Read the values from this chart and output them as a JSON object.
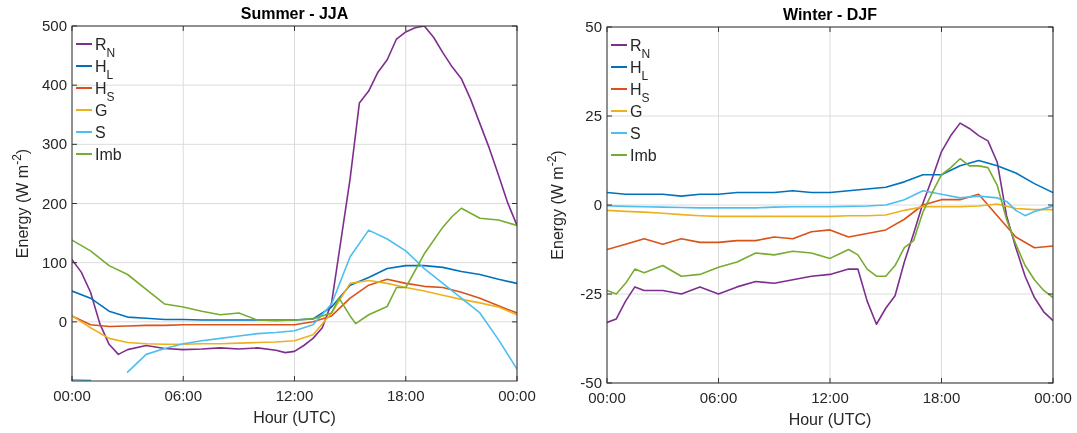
{
  "chart_data": [
    {
      "type": "line",
      "title": "Summer - JJA",
      "xlabel": "Hour (UTC)",
      "ylabel": "Energy (W m$^{-2}$)",
      "x": [
        0,
        1,
        2,
        3,
        4,
        5,
        6,
        7,
        8,
        9,
        10,
        11,
        12,
        13,
        14,
        15,
        16,
        17,
        18,
        19,
        20,
        21,
        22,
        23,
        24
      ],
      "xlim": [
        0,
        24
      ],
      "xticks": [
        {
          "value": 0,
          "label": "00:00"
        },
        {
          "value": 6,
          "label": "06:00"
        },
        {
          "value": 12,
          "label": "12:00"
        },
        {
          "value": 18,
          "label": "18:00"
        },
        {
          "value": 24,
          "label": "00:00"
        }
      ],
      "ylim": [
        -100,
        500
      ],
      "yticks": [
        0,
        100,
        200,
        300,
        400,
        500
      ],
      "grid": true,
      "legend": "top left",
      "series": [
        {
          "name": "R$_{N}$",
          "color": "#7e2f8e",
          "x": [
            0,
            0.5,
            1,
            1.5,
            2,
            2.5,
            3,
            4,
            5,
            6,
            7,
            8,
            9,
            10,
            11,
            11.5,
            12,
            12.5,
            13,
            13.5,
            14,
            14.5,
            15,
            15.5,
            16,
            16.5,
            17,
            17.5,
            18,
            18.5,
            19,
            19.5,
            20,
            20.5,
            21,
            21.5,
            22,
            22.5,
            23,
            23.5,
            24
          ],
          "values": [
            105,
            84,
            50,
            -3,
            -38,
            -55,
            -47,
            -40,
            -45,
            -47,
            -46,
            -44,
            -46,
            -44,
            -48,
            -52,
            -50,
            -40,
            -28,
            -10,
            32,
            137,
            242,
            370,
            390,
            422,
            443,
            478,
            490,
            497,
            500,
            481,
            455,
            431,
            411,
            376,
            335,
            294,
            248,
            201,
            163
          ]
        },
        {
          "name": "H$_{L}$",
          "color": "#0072bd",
          "values": [
            52,
            40,
            18,
            8,
            6,
            4,
            4,
            3,
            3,
            3,
            3,
            3,
            3,
            5,
            25,
            62,
            75,
            90,
            95,
            95,
            92,
            85,
            80,
            72,
            65
          ]
        },
        {
          "name": "H$_{S}$",
          "color": "#d95319",
          "values": [
            10,
            -5,
            -8,
            -7,
            -6,
            -6,
            -5,
            -5,
            -5,
            -5,
            -5,
            -5,
            -5,
            0,
            10,
            40,
            62,
            72,
            65,
            60,
            58,
            50,
            40,
            27,
            15
          ]
        },
        {
          "name": "G",
          "color": "#edb120",
          "values": [
            10,
            -10,
            -28,
            -35,
            -37,
            -38,
            -38,
            -37,
            -37,
            -36,
            -35,
            -34,
            -32,
            -22,
            15,
            65,
            70,
            65,
            58,
            52,
            45,
            38,
            32,
            25,
            12
          ]
        },
        {
          "name": "S",
          "color": "#4dbeee",
          "values": [
            -98,
            -99,
            null,
            -85,
            -55,
            -45,
            -37,
            -32,
            -28,
            -24,
            -20,
            -18,
            -15,
            -5,
            30,
            110,
            155,
            140,
            120,
            90,
            65,
            40,
            15,
            -30,
            -80
          ]
        },
        {
          "name": "Imb",
          "color": "#77ac30",
          "x": [
            0,
            1,
            2,
            3,
            4,
            5,
            6,
            7,
            8,
            9,
            10,
            11,
            12,
            13,
            14,
            14.4,
            15,
            15.3,
            16,
            17,
            17.5,
            18,
            19,
            20,
            20.5,
            21,
            22,
            23,
            24
          ],
          "values": [
            138,
            120,
            95,
            80,
            55,
            30,
            25,
            18,
            12,
            15,
            3,
            2,
            3,
            5,
            15,
            40,
            10,
            -3,
            12,
            26,
            58,
            58,
            115,
            160,
            178,
            192,
            175,
            172,
            163
          ]
        }
      ]
    },
    {
      "type": "line",
      "title": "Winter - DJF",
      "xlabel": "Hour (UTC)",
      "ylabel": "Energy (W m$^{-2}$)",
      "x": [
        0,
        1,
        2,
        3,
        4,
        5,
        6,
        7,
        8,
        9,
        10,
        11,
        12,
        13,
        14,
        15,
        16,
        17,
        18,
        19,
        20,
        21,
        22,
        23,
        24
      ],
      "xlim": [
        0,
        24
      ],
      "xticks": [
        {
          "value": 0,
          "label": "00:00"
        },
        {
          "value": 6,
          "label": "06:00"
        },
        {
          "value": 12,
          "label": "12:00"
        },
        {
          "value": 18,
          "label": "18:00"
        },
        {
          "value": 24,
          "label": "00:00"
        }
      ],
      "ylim": [
        -50,
        50
      ],
      "yticks": [
        -50,
        -25,
        0,
        25,
        50
      ],
      "grid": true,
      "legend": "top left",
      "series": [
        {
          "name": "R$_{N}$",
          "color": "#7e2f8e",
          "x": [
            0,
            0.5,
            1,
            1.5,
            2,
            3,
            4,
            5,
            6,
            7,
            8,
            9,
            10,
            11,
            12,
            13,
            13.5,
            14,
            14.5,
            15,
            15.5,
            16,
            16.5,
            17,
            17.5,
            18,
            18.5,
            19,
            19.5,
            20,
            20.5,
            21,
            21.5,
            22,
            22.5,
            23,
            23.5,
            24
          ],
          "values": [
            -33,
            -32,
            -27,
            -23,
            -24,
            -24,
            -25,
            -23,
            -25,
            -23,
            -21.5,
            -22,
            -21,
            -20,
            -19.5,
            -18,
            -18,
            -27,
            -33.5,
            -29,
            -25.5,
            -16,
            -8,
            0.5,
            7.5,
            15,
            19.5,
            23,
            21.5,
            19.5,
            18,
            12,
            -3,
            -12,
            -20,
            -26,
            -30,
            -32.5
          ]
        },
        {
          "name": "H$_{L}$",
          "color": "#0072bd",
          "values": [
            3.5,
            3,
            3,
            3,
            2.5,
            3,
            3,
            3.5,
            3.5,
            3.5,
            4,
            3.5,
            3.5,
            4,
            4.5,
            5,
            6.5,
            8.5,
            8.5,
            11,
            12.5,
            11,
            9,
            6,
            3.5
          ]
        },
        {
          "name": "H$_{S}$",
          "color": "#d95319",
          "values": [
            -12.5,
            -11,
            -9.5,
            -11,
            -9.5,
            -10.5,
            -10.5,
            -10,
            -10,
            -9,
            -9.5,
            -7.5,
            -7,
            -9,
            -8,
            -7,
            -4,
            0,
            1.5,
            1.5,
            3,
            -3,
            -9,
            -12,
            -11.5
          ]
        },
        {
          "name": "G",
          "color": "#edb120",
          "values": [
            -1.5,
            -1.8,
            -2,
            -2.3,
            -2.7,
            -3,
            -3.2,
            -3.2,
            -3.2,
            -3.2,
            -3.2,
            -3.2,
            -3.2,
            -3,
            -3,
            -2.8,
            -1.5,
            -0.5,
            -0.5,
            -0.5,
            -0.3,
            0.3,
            -1,
            -1.3,
            -1.3
          ]
        },
        {
          "name": "S",
          "color": "#4dbeee",
          "x": [
            0,
            1,
            2,
            3,
            4,
            5,
            6,
            7,
            8,
            9,
            10,
            11,
            12,
            13,
            14,
            15,
            16,
            17,
            18,
            19,
            20,
            21,
            21.5,
            22,
            22.5,
            23,
            24
          ],
          "values": [
            -0.2,
            -0.4,
            -0.5,
            -0.6,
            -0.7,
            -0.8,
            -0.8,
            -0.8,
            -0.8,
            -0.6,
            -0.5,
            -0.5,
            -0.5,
            -0.4,
            -0.3,
            0,
            1.5,
            4,
            3,
            2,
            2.5,
            2,
            1,
            -1.5,
            -3,
            -1.8,
            -0.3
          ]
        },
        {
          "name": "Imb",
          "color": "#77ac30",
          "x": [
            0,
            0.5,
            1,
            1.5,
            2,
            3,
            4,
            5,
            6,
            7,
            8,
            9,
            10,
            11,
            12,
            13,
            13.5,
            14,
            14.5,
            15,
            15.5,
            16,
            16.5,
            17,
            17.5,
            18,
            18.5,
            19,
            19.5,
            20,
            20.5,
            21,
            21.5,
            22,
            22.5,
            23,
            23.5,
            24
          ],
          "values": [
            -24,
            -25,
            -22,
            -18,
            -19,
            -17,
            -20,
            -19.5,
            -17.5,
            -16,
            -13.5,
            -14,
            -13,
            -13.5,
            -15,
            -12.5,
            -14,
            -18,
            -20,
            -20,
            -17,
            -12,
            -10,
            -2,
            3.5,
            8.5,
            10.5,
            13,
            11,
            11,
            10.5,
            5.5,
            -4,
            -11,
            -17,
            -21,
            -24,
            -26
          ]
        }
      ]
    }
  ]
}
